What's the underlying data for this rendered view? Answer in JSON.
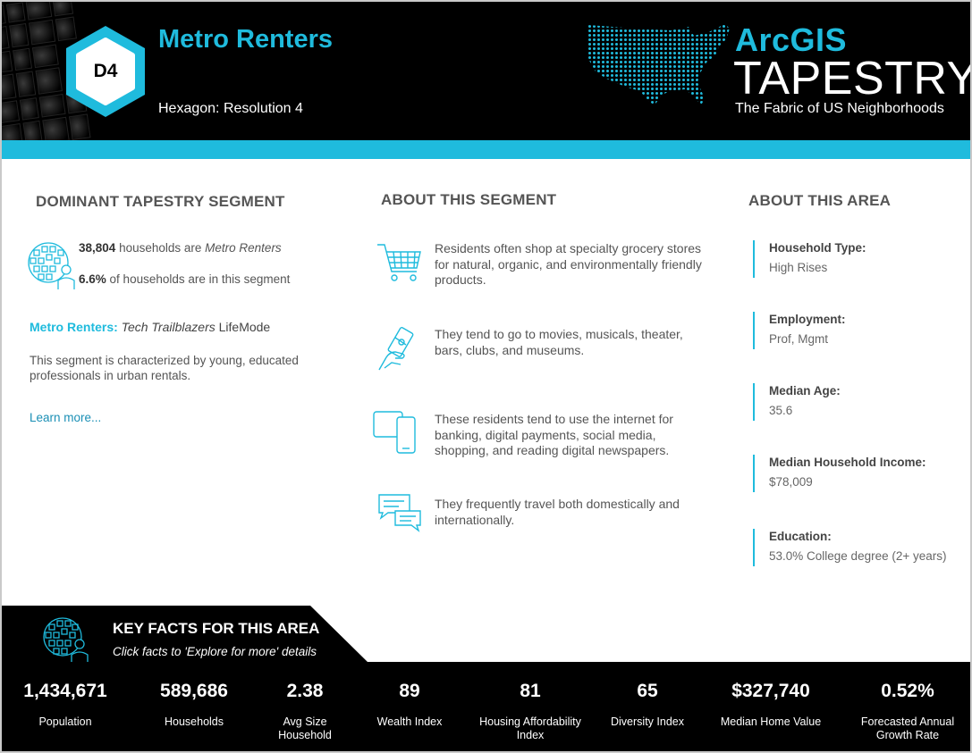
{
  "header": {
    "segment_code": "D4",
    "segment_name": "Metro Renters",
    "geography": "Hexagon: Resolution 4",
    "brand_top": "ArcGIS",
    "brand_main": "TAPESTRY",
    "tagline": "The Fabric of US Neighborhoods"
  },
  "colors": {
    "accent": "#1fbbdd",
    "header_bg": "#000000",
    "text": "#555555"
  },
  "dominant": {
    "heading": "DOMINANT TAPESTRY SEGMENT",
    "households_count": "38,804",
    "households_text": "households are",
    "households_segment": "Metro Renters",
    "percent": "6.6%",
    "percent_text": "of households are in this segment",
    "lifemode_segment": "Metro Renters:",
    "lifemode_name": "Tech Trailblazers",
    "lifemode_suffix": "LifeMode",
    "description": "This segment is characterized by young, educated professionals in urban rentals.",
    "learn_more": "Learn more..."
  },
  "about_segment": {
    "heading": "ABOUT THIS SEGMENT",
    "items": [
      {
        "icon": "shopping-cart-icon",
        "text": "Residents often shop at specialty grocery stores for natural, organic, and environmentally friendly products."
      },
      {
        "icon": "ticket-hand-icon",
        "text": "They tend to go to movies, musicals, theater, bars, clubs, and museums."
      },
      {
        "icon": "devices-icon",
        "text": "These residents tend to use the internet for banking, digital payments, social media, shopping, and reading digital newspapers."
      },
      {
        "icon": "chat-bubbles-icon",
        "text": "They frequently travel both domestically and internationally."
      }
    ]
  },
  "about_area": {
    "heading": "ABOUT THIS AREA",
    "items": [
      {
        "label": "Household Type:",
        "value": "High Rises"
      },
      {
        "label": "Employment:",
        "value": "Prof, Mgmt"
      },
      {
        "label": "Median Age:",
        "value": "35.6"
      },
      {
        "label": "Median Household Income:",
        "value": "$78,009"
      },
      {
        "label": "Education:",
        "value": "53.0% College degree (2+ years)"
      }
    ]
  },
  "key_facts": {
    "heading": "KEY FACTS FOR THIS AREA",
    "subheading": "Click facts to 'Explore for more' details",
    "facts": [
      {
        "value": "1,434,671",
        "label": "Population"
      },
      {
        "value": "589,686",
        "label": "Households"
      },
      {
        "value": "2.38",
        "label": "Avg Size Household"
      },
      {
        "value": "89",
        "label": "Wealth Index"
      },
      {
        "value": "81",
        "label": "Housing Affordability Index"
      },
      {
        "value": "65",
        "label": "Diversity Index"
      },
      {
        "value": "$327,740",
        "label": "Median Home Value"
      },
      {
        "value": "0.52%",
        "label": "Forecasted Annual Growth Rate"
      }
    ]
  }
}
